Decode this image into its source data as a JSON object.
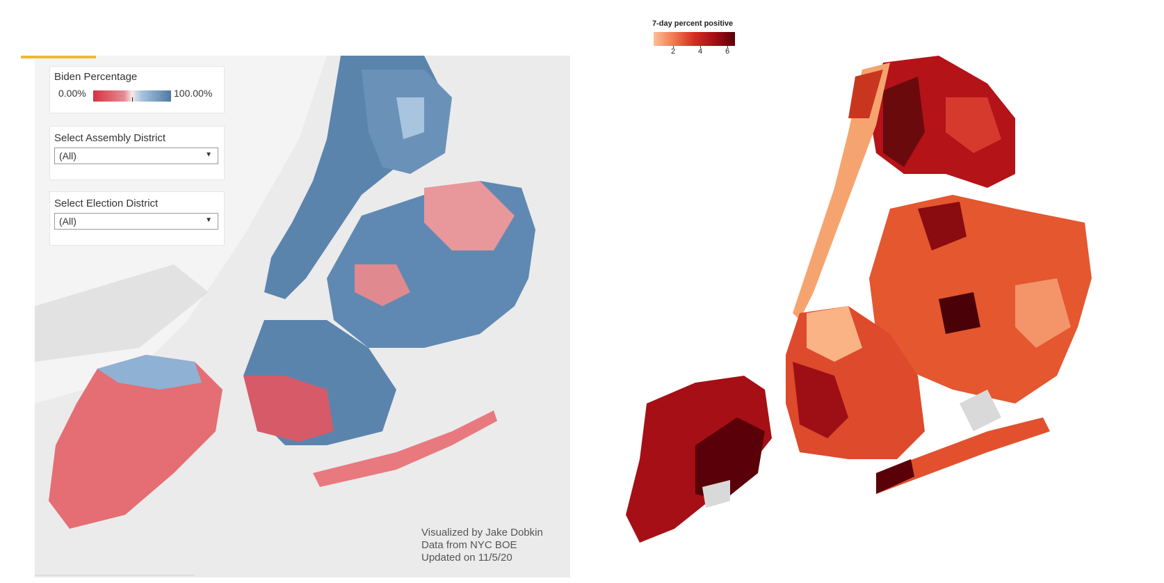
{
  "left_map": {
    "legend": {
      "title": "Biden Percentage",
      "min_label": "0.00%",
      "max_label": "100.00%",
      "colors": [
        "#d7303f",
        "#f4e9e9",
        "#4d7aa3"
      ]
    },
    "assembly_filter": {
      "label": "Select Assembly District",
      "value": "(All)"
    },
    "election_filter": {
      "label": "Select Election District",
      "value": "(All)"
    },
    "credits": {
      "line1": "Visualized by Jake Dobkin",
      "line2": "Data from NYC BOE",
      "line3": "Updated on 11/5/20"
    },
    "accent_color": "#f2b632"
  },
  "right_map": {
    "legend": {
      "title": "7-day percent positive",
      "ticks": [
        "2",
        "4",
        "6"
      ],
      "colors": [
        "#fdbf97",
        "#f07850",
        "#d42d22",
        "#a50f15",
        "#5a0008"
      ]
    },
    "missing_color": "#d9d9d9"
  }
}
